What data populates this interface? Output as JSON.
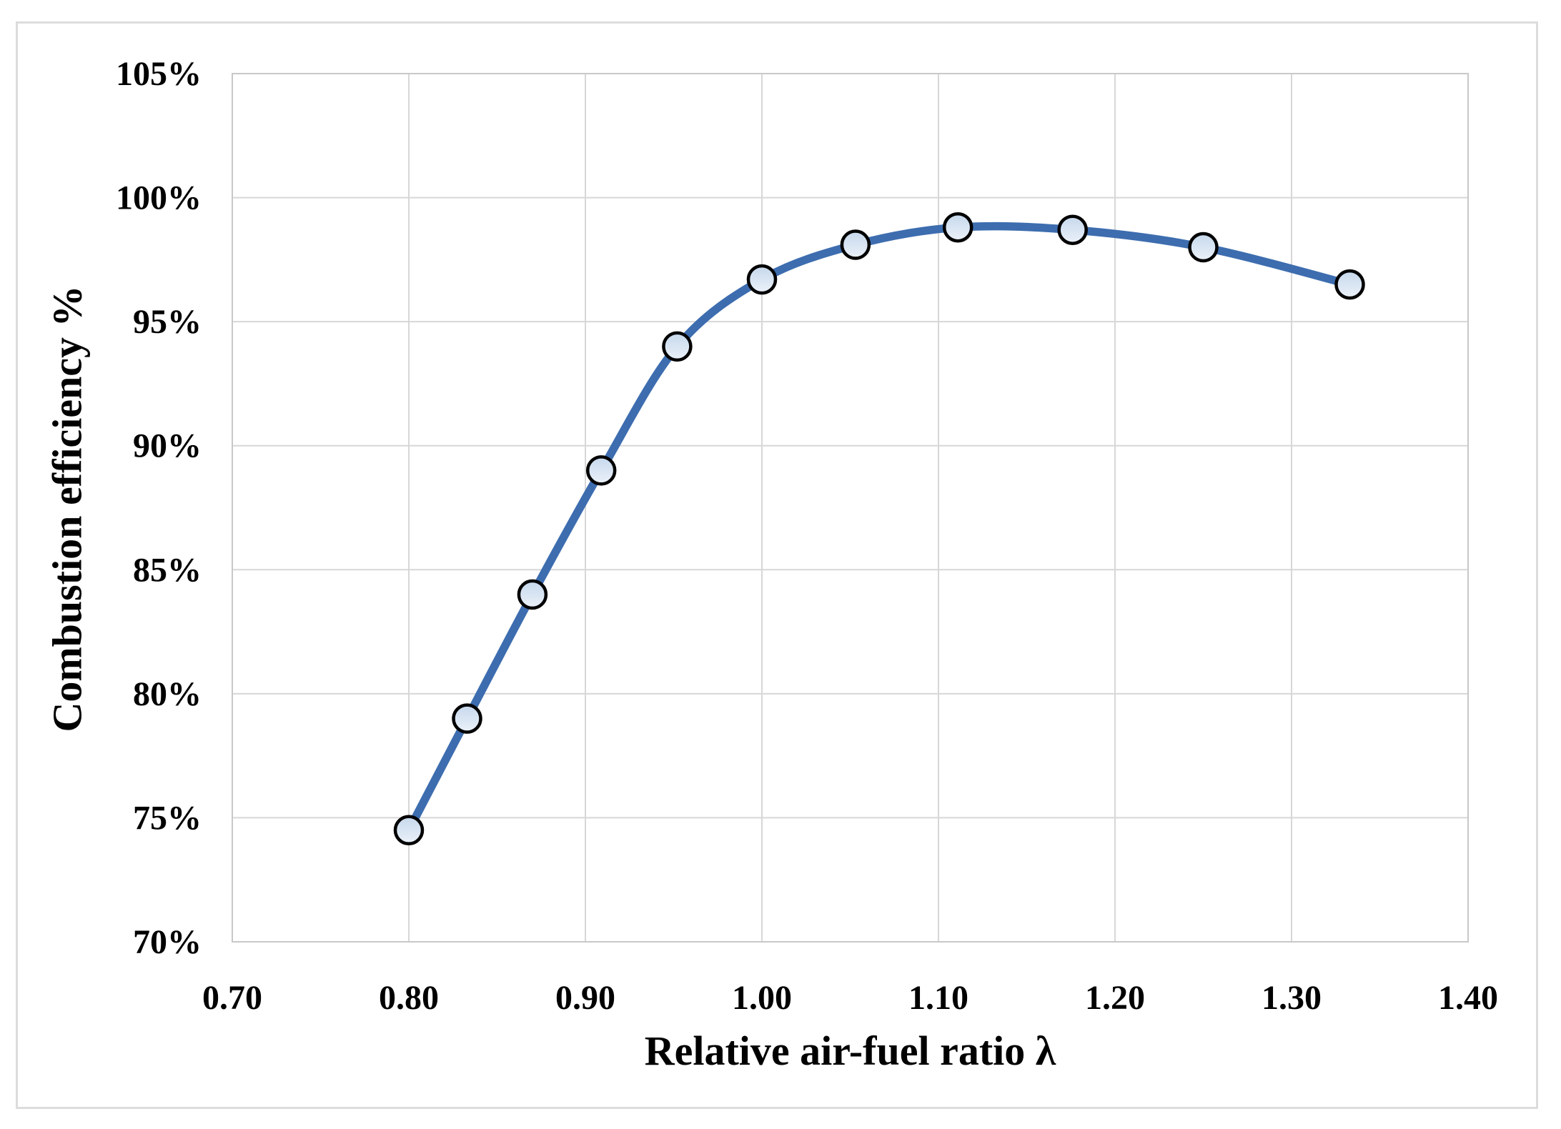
{
  "chart_data": {
    "type": "line",
    "title": "",
    "xlabel": "Relative air-fuel ratio λ",
    "ylabel": "Combustion efficiency %",
    "series": [
      {
        "name": "Combustion efficiency",
        "x": [
          0.8,
          0.833,
          0.87,
          0.909,
          0.952,
          1.0,
          1.053,
          1.111,
          1.176,
          1.25,
          1.333
        ],
        "y": [
          74.5,
          79.0,
          84.0,
          89.0,
          94.0,
          96.7,
          98.1,
          98.8,
          98.7,
          98.0,
          96.5
        ]
      }
    ],
    "xlim": [
      0.7,
      1.4
    ],
    "ylim": [
      70,
      105
    ],
    "x_tick_values": [
      0.7,
      0.8,
      0.9,
      1.0,
      1.1,
      1.2,
      1.3,
      1.4
    ],
    "x_tick_labels": [
      "0.70",
      "0.80",
      "0.90",
      "1.00",
      "1.10",
      "1.20",
      "1.30",
      "1.40"
    ],
    "y_tick_values": [
      70,
      75,
      80,
      85,
      90,
      95,
      100,
      105
    ],
    "y_tick_labels": [
      "70%",
      "75%",
      "80%",
      "85%",
      "90%",
      "95%",
      "100%",
      "105%"
    ],
    "grid": true,
    "legend_position": "none",
    "smooth_line": true,
    "colors": {
      "line": "#3D6DAF",
      "marker_fill_top": "#c6d8ec",
      "marker_fill_bottom": "#ebf1f9",
      "marker_stroke": "#000000",
      "gridline": "#d7d7d7",
      "plot_border": "#c8c8c8",
      "frame_border": "#dcdcdc",
      "text": "#000000"
    }
  }
}
